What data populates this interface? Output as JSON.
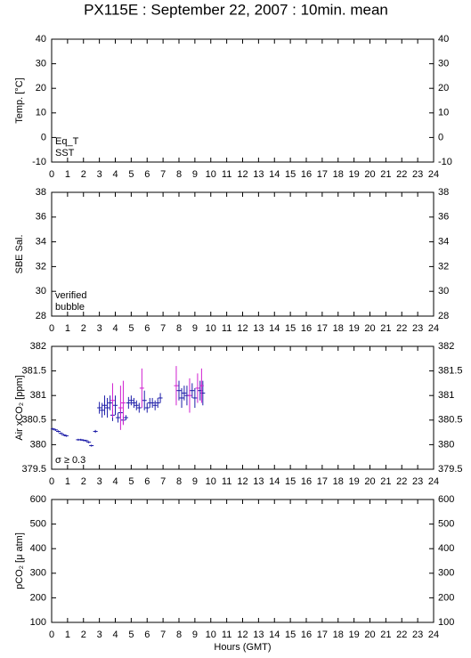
{
  "title": "PX115E : September 22, 2007 : 10min. mean",
  "chart_data": [
    {
      "type": "scatter",
      "ylabel": "Temp. [°C]",
      "ylim": [
        -10,
        40
      ],
      "yticks": [
        -10,
        0,
        10,
        20,
        30,
        40
      ],
      "xlim": [
        0,
        24
      ],
      "xticks": [
        0,
        1,
        2,
        3,
        4,
        5,
        6,
        7,
        8,
        9,
        10,
        11,
        12,
        13,
        14,
        15,
        16,
        17,
        18,
        19,
        20,
        21,
        22,
        23,
        24
      ],
      "series": [
        {
          "name": "Eq_T",
          "color": "#e00000",
          "x": [],
          "values": []
        },
        {
          "name": "SST",
          "color": "#1c1ca8",
          "x": [],
          "values": []
        }
      ]
    },
    {
      "type": "scatter",
      "ylabel": "SBE Sal.",
      "ylim": [
        28,
        38
      ],
      "yticks": [
        28,
        30,
        32,
        34,
        36,
        38
      ],
      "xlim": [
        0,
        24
      ],
      "xticks": [
        0,
        1,
        2,
        3,
        4,
        5,
        6,
        7,
        8,
        9,
        10,
        11,
        12,
        13,
        14,
        15,
        16,
        17,
        18,
        19,
        20,
        21,
        22,
        23,
        24
      ],
      "series": [
        {
          "name": "verified",
          "color": "#1c1ca8",
          "x": [],
          "values": []
        },
        {
          "name": "bubble",
          "color": "#d020d0",
          "x": [],
          "values": []
        }
      ]
    },
    {
      "type": "errorbar",
      "ylabel": "Air xCO₂ [ppm]",
      "ylim": [
        379.5,
        382
      ],
      "yticks": [
        379.5,
        380,
        380.5,
        381,
        381.5,
        382
      ],
      "xlim": [
        0,
        24
      ],
      "xticks": [
        0,
        1,
        2,
        3,
        4,
        5,
        6,
        7,
        8,
        9,
        10,
        11,
        12,
        13,
        14,
        15,
        16,
        17,
        18,
        19,
        20,
        21,
        22,
        23,
        24
      ],
      "series": [
        {
          "color": "#1c1ca8",
          "x": [
            0.08,
            0.25,
            0.42,
            0.58,
            0.75,
            0.92,
            1.67,
            1.83,
            2.0,
            2.17,
            2.33,
            2.5,
            2.75,
            3.0,
            3.17,
            3.33,
            3.5,
            3.67,
            3.83,
            4.0,
            4.17,
            4.33,
            4.5,
            4.67,
            4.83,
            5.0,
            5.17,
            5.33,
            5.5,
            5.83,
            6.0,
            6.17,
            6.33,
            6.5,
            6.67,
            6.83,
            8.0,
            8.17,
            8.33,
            8.5,
            8.83,
            9.0,
            9.33,
            9.5
          ],
          "values": [
            380.32,
            380.3,
            380.27,
            380.23,
            380.2,
            380.18,
            380.1,
            380.1,
            380.09,
            380.08,
            380.05,
            379.98,
            380.27,
            380.75,
            380.7,
            380.8,
            380.75,
            380.85,
            380.6,
            380.8,
            380.55,
            380.65,
            380.5,
            380.55,
            380.85,
            380.9,
            380.85,
            380.8,
            380.75,
            380.9,
            380.75,
            380.85,
            380.85,
            380.8,
            380.85,
            380.95,
            381.1,
            380.95,
            381.05,
            381.0,
            381.1,
            380.95,
            381.1,
            381.05
          ],
          "errors": [
            0.02,
            0.02,
            0.02,
            0.02,
            0.02,
            0.02,
            0.02,
            0.02,
            0.02,
            0.02,
            0.02,
            0.02,
            0.03,
            0.12,
            0.15,
            0.2,
            0.2,
            0.15,
            0.12,
            0.2,
            0.1,
            0.1,
            0.08,
            0.05,
            0.12,
            0.1,
            0.1,
            0.1,
            0.1,
            0.2,
            0.1,
            0.1,
            0.1,
            0.1,
            0.1,
            0.1,
            0.2,
            0.2,
            0.15,
            0.2,
            0.15,
            0.2,
            0.2,
            0.25
          ]
        },
        {
          "name": "σ ≥ 0.3",
          "color": "#d020d0",
          "x": [
            3.83,
            4.33,
            4.5,
            5.67,
            7.83,
            8.67,
            9.17,
            9.42
          ],
          "values": [
            380.9,
            380.75,
            380.85,
            381.15,
            381.2,
            381.0,
            381.15,
            381.2
          ],
          "errors": [
            0.35,
            0.45,
            0.45,
            0.4,
            0.4,
            0.35,
            0.3,
            0.35
          ]
        }
      ]
    },
    {
      "type": "scatter",
      "ylabel": "pCO₂ [μ atm]",
      "xlabel": "Hours (GMT)",
      "ylim": [
        100,
        600
      ],
      "yticks": [
        100,
        200,
        300,
        400,
        500,
        600
      ],
      "xlim": [
        0,
        24
      ],
      "xticks": [
        0,
        1,
        2,
        3,
        4,
        5,
        6,
        7,
        8,
        9,
        10,
        11,
        12,
        13,
        14,
        15,
        16,
        17,
        18,
        19,
        20,
        21,
        22,
        23,
        24
      ],
      "series": []
    }
  ]
}
